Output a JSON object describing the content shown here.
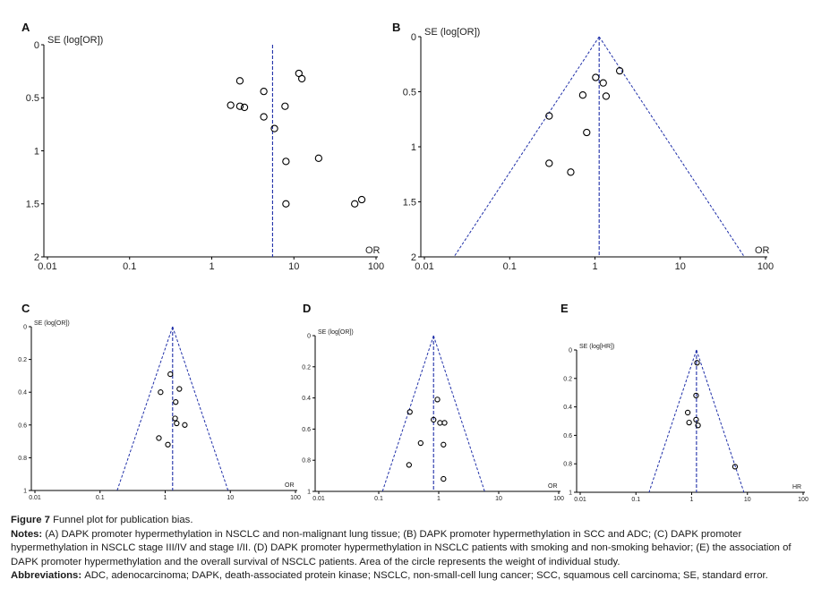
{
  "colors": {
    "axis": "#000000",
    "funnel": "#1f2fa8",
    "marker": "#000000"
  },
  "chart_data": [
    {
      "panel": "A",
      "type": "scatter",
      "ylabel": "SE (log[OR])",
      "xlabel": "OR",
      "xscale": "log",
      "xlim": [
        0.01,
        100
      ],
      "ylim": [
        0,
        2
      ],
      "xticks": [
        "0.01",
        "0.1",
        "1",
        "10",
        "100"
      ],
      "yticks": [
        "0",
        "0.5",
        "1",
        "1.5",
        "2"
      ],
      "pooled": 5.5,
      "funnel": false,
      "points": [
        {
          "x": 2.2,
          "y": 0.34
        },
        {
          "x": 4.3,
          "y": 0.44
        },
        {
          "x": 11.5,
          "y": 0.27
        },
        {
          "x": 12.5,
          "y": 0.32
        },
        {
          "x": 1.7,
          "y": 0.57
        },
        {
          "x": 2.2,
          "y": 0.58
        },
        {
          "x": 2.5,
          "y": 0.59
        },
        {
          "x": 4.3,
          "y": 0.68
        },
        {
          "x": 7.8,
          "y": 0.58
        },
        {
          "x": 5.8,
          "y": 0.79
        },
        {
          "x": 8.0,
          "y": 1.1
        },
        {
          "x": 20,
          "y": 1.07
        },
        {
          "x": 8.0,
          "y": 1.5
        },
        {
          "x": 55,
          "y": 1.5
        },
        {
          "x": 67,
          "y": 1.46
        }
      ]
    },
    {
      "panel": "B",
      "type": "scatter",
      "ylabel": "SE (log[OR])",
      "xlabel": "OR",
      "xscale": "log",
      "xlim": [
        0.01,
        100
      ],
      "ylim": [
        0,
        2
      ],
      "xticks": [
        "0.01",
        "0.1",
        "1",
        "10",
        "100"
      ],
      "yticks": [
        "0",
        "0.5",
        "1",
        "1.5",
        "2"
      ],
      "pooled": 1.12,
      "funnel": true,
      "points": [
        {
          "x": 1.95,
          "y": 0.31
        },
        {
          "x": 1.02,
          "y": 0.37
        },
        {
          "x": 1.25,
          "y": 0.42
        },
        {
          "x": 0.72,
          "y": 0.53
        },
        {
          "x": 1.35,
          "y": 0.54
        },
        {
          "x": 0.29,
          "y": 0.72
        },
        {
          "x": 0.8,
          "y": 0.87
        },
        {
          "x": 0.29,
          "y": 1.15
        },
        {
          "x": 0.52,
          "y": 1.23
        }
      ]
    },
    {
      "panel": "C",
      "type": "scatter",
      "ylabel": "SE (log[OR])",
      "xlabel": "OR",
      "xscale": "log",
      "xlim": [
        0.01,
        100
      ],
      "ylim": [
        0,
        1
      ],
      "xticks": [
        "0.01",
        "0.1",
        "1",
        "10",
        "100"
      ],
      "yticks": [
        "0",
        "0.2",
        "0.4",
        "0.6",
        "0.8",
        "1"
      ],
      "pooled": 1.3,
      "funnel": true,
      "points": [
        {
          "x": 1.2,
          "y": 0.29
        },
        {
          "x": 0.85,
          "y": 0.4
        },
        {
          "x": 1.65,
          "y": 0.38
        },
        {
          "x": 1.45,
          "y": 0.46
        },
        {
          "x": 1.42,
          "y": 0.56
        },
        {
          "x": 1.5,
          "y": 0.59
        },
        {
          "x": 2.0,
          "y": 0.6
        },
        {
          "x": 0.8,
          "y": 0.68
        },
        {
          "x": 1.1,
          "y": 0.72
        }
      ]
    },
    {
      "panel": "D",
      "type": "scatter",
      "ylabel": "SE (log[OR])",
      "xlabel": "OR",
      "xscale": "log",
      "xlim": [
        0.01,
        100
      ],
      "ylim": [
        0,
        1
      ],
      "xticks": [
        "0.01",
        "0.1",
        "1",
        "10",
        "100"
      ],
      "yticks": [
        "0",
        "0.2",
        "0.4",
        "0.6",
        "0.8",
        "1"
      ],
      "pooled": 0.82,
      "funnel": true,
      "points": [
        {
          "x": 0.95,
          "y": 0.41
        },
        {
          "x": 0.33,
          "y": 0.49
        },
        {
          "x": 0.82,
          "y": 0.54
        },
        {
          "x": 1.05,
          "y": 0.56
        },
        {
          "x": 1.25,
          "y": 0.56
        },
        {
          "x": 0.5,
          "y": 0.69
        },
        {
          "x": 1.2,
          "y": 0.7
        },
        {
          "x": 0.32,
          "y": 0.83
        },
        {
          "x": 1.2,
          "y": 0.92
        }
      ]
    },
    {
      "panel": "E",
      "type": "scatter",
      "ylabel": "SE (log[HR])",
      "xlabel": "HR",
      "xscale": "log",
      "xlim": [
        0.01,
        100
      ],
      "ylim": [
        0,
        1
      ],
      "xticks": [
        "0.01",
        "0.1",
        "1",
        "10",
        "100"
      ],
      "yticks": [
        "0",
        "0.2",
        "0.4",
        "0.6",
        "0.8",
        "1"
      ],
      "pooled": 1.22,
      "funnel": true,
      "points": [
        {
          "x": 1.25,
          "y": 0.09
        },
        {
          "x": 1.2,
          "y": 0.32
        },
        {
          "x": 0.85,
          "y": 0.44
        },
        {
          "x": 0.9,
          "y": 0.51
        },
        {
          "x": 1.2,
          "y": 0.49
        },
        {
          "x": 1.3,
          "y": 0.53
        },
        {
          "x": 6.0,
          "y": 0.82
        }
      ]
    }
  ],
  "caption": {
    "figure_label": "Figure 7",
    "figure_title": " Funnel plot for publication bias.",
    "notes_label": "Notes: ",
    "notes_text": "(A) DAPK promoter hypermethylation in NSCLC and non-malignant lung tissue; (B) DAPK promoter hypermethylation in SCC and ADC; (C) DAPK promoter hypermethylation in NSCLC stage III/IV and stage I/II. (D) DAPK promoter hypermethylation in NSCLC patients with smoking and non-smoking behavior; (E) the association of DAPK promoter hypermethylation and the overall survival of NSCLC patients. Area of the circle represents the weight of individual study.",
    "abbrev_label": "Abbreviations: ",
    "abbrev_text": "ADC, adenocarcinoma; DAPK, death-associated protein kinase; NSCLC, non-small-cell lung cancer; SCC, squamous cell carcinoma; SE, standard error."
  }
}
